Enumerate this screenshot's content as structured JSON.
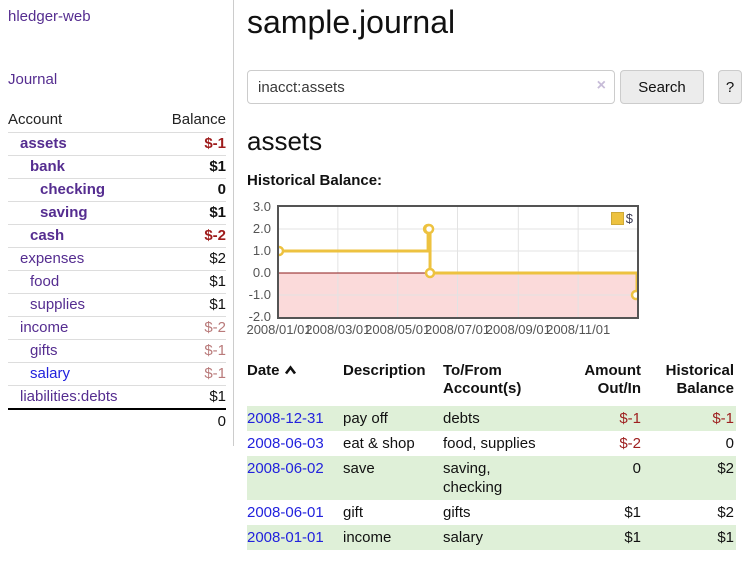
{
  "app": {
    "brand": "hledger-web"
  },
  "sidebar": {
    "journal_label": "Journal",
    "table": {
      "account_header": "Account",
      "balance_header": "Balance",
      "accounts": [
        {
          "name": "assets",
          "indent": 1,
          "bold": true,
          "balance": "$-1",
          "balance_style": "negative-strong"
        },
        {
          "name": "bank",
          "indent": 2,
          "bold": true,
          "balance": "$1",
          "balance_style": "normal"
        },
        {
          "name": "checking",
          "indent": 3,
          "bold": true,
          "balance": "0",
          "balance_style": "normal"
        },
        {
          "name": "saving",
          "indent": 3,
          "bold": true,
          "balance": "$1",
          "balance_style": "normal"
        },
        {
          "name": "cash",
          "indent": 2,
          "bold": true,
          "balance": "$-2",
          "balance_style": "negative-strong"
        },
        {
          "name": "expenses",
          "indent": 1,
          "bold": false,
          "balance": "$2",
          "balance_style": "normal"
        },
        {
          "name": "food",
          "indent": 2,
          "bold": false,
          "balance": "$1",
          "balance_style": "normal"
        },
        {
          "name": "supplies",
          "indent": 2,
          "bold": false,
          "balance": "$1",
          "balance_style": "normal"
        },
        {
          "name": "income",
          "indent": 1,
          "bold": false,
          "balance": "$-2",
          "balance_style": "negative-weak"
        },
        {
          "name": "gifts",
          "indent": 2,
          "bold": false,
          "balance": "$-1",
          "balance_style": "negative-weak"
        },
        {
          "name": "salary",
          "indent": 2,
          "bold": false,
          "balance": "$-1",
          "balance_style": "negative-weak",
          "link_color": "blue"
        },
        {
          "name": "liabilities:debts",
          "indent": 1,
          "bold": false,
          "balance": "$1",
          "balance_style": "normal"
        }
      ],
      "total": "0"
    }
  },
  "header": {
    "title": "sample.journal"
  },
  "search": {
    "value": "inacct:assets",
    "clear_icon": "×",
    "button_label": "Search",
    "help_label": "?"
  },
  "account_page": {
    "heading": "assets",
    "chart_label": "Historical Balance:"
  },
  "chart_data": {
    "type": "line",
    "title": "Historical Balance:",
    "step": true,
    "grid": true,
    "legend_position": "top-right",
    "legend": [
      {
        "label": "$",
        "color": "#edc240"
      }
    ],
    "ylim": [
      -2,
      3
    ],
    "yticks": [
      {
        "label": "3.0",
        "value": 3
      },
      {
        "label": "2.0",
        "value": 2
      },
      {
        "label": "1.0",
        "value": 1
      },
      {
        "label": "0.0",
        "value": 0
      },
      {
        "label": "-1.0",
        "value": -1
      },
      {
        "label": "-2.0",
        "value": -2
      }
    ],
    "x_domain_days": [
      0,
      365
    ],
    "xticks": [
      {
        "label": "2008/01/01",
        "day": 0
      },
      {
        "label": "2008/03/01",
        "day": 60
      },
      {
        "label": "2008/05/01",
        "day": 121
      },
      {
        "label": "2008/07/01",
        "day": 182
      },
      {
        "label": "2008/09/01",
        "day": 244
      },
      {
        "label": "2008/11/01",
        "day": 305
      }
    ],
    "series": [
      {
        "name": "$",
        "color": "#edc240",
        "points": [
          {
            "date": "2008-01-01",
            "day": 0,
            "value": 1
          },
          {
            "date": "2008-06-01",
            "day": 152,
            "value": 2
          },
          {
            "date": "2008-06-02",
            "day": 153,
            "value": 2
          },
          {
            "date": "2008-06-03",
            "day": 154,
            "value": 0
          },
          {
            "date": "2008-12-31",
            "day": 365,
            "value": -1
          }
        ]
      }
    ],
    "negative_region_fill": "#fbdada",
    "zero_line_color": "#8b1a1a",
    "gridline_color": "#e3e3e3"
  },
  "register": {
    "sort": {
      "column": "date",
      "direction": "ascending"
    },
    "headers": {
      "date": "Date",
      "description": "Description",
      "accounts": "To/From Account(s)",
      "amount": "Amount Out/In",
      "balance": "Historical Balance"
    },
    "rows": [
      {
        "date": "2008-12-31",
        "description": "pay off",
        "accounts": "debts",
        "amount": "$-1",
        "amount_negative": true,
        "balance": "$-1",
        "balance_negative": true
      },
      {
        "date": "2008-06-03",
        "description": "eat & shop",
        "accounts": "food, supplies",
        "amount": "$-2",
        "amount_negative": true,
        "balance": "0",
        "balance_negative": false
      },
      {
        "date": "2008-06-02",
        "description": "save",
        "accounts": "saving, checking",
        "amount": "0",
        "amount_negative": false,
        "balance": "$2",
        "balance_negative": false
      },
      {
        "date": "2008-06-01",
        "description": "gift",
        "accounts": "gifts",
        "amount": "$1",
        "amount_negative": false,
        "balance": "$2",
        "balance_negative": false
      },
      {
        "date": "2008-01-01",
        "description": "income",
        "accounts": "salary",
        "amount": "$1",
        "amount_negative": false,
        "balance": "$1",
        "balance_negative": false
      }
    ]
  },
  "colors": {
    "link_purple": "#552d90",
    "link_blue": "#2222dd",
    "negative_strong": "#9e1c1c",
    "negative_weak": "#b97a7a",
    "row_stripe_green": "#dff0d8",
    "series_gold": "#edc240"
  }
}
